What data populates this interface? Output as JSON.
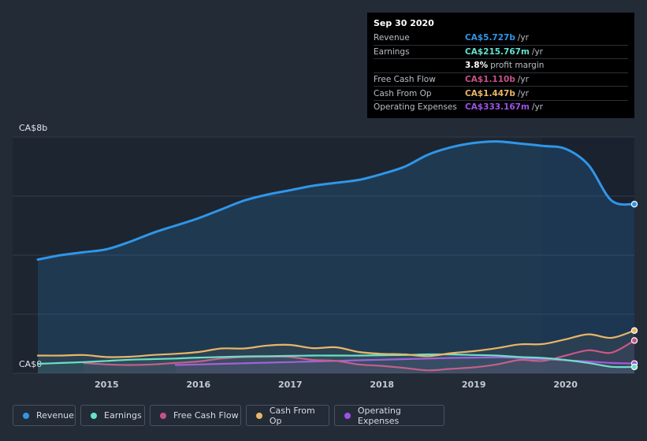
{
  "colors": {
    "background": "#232b37",
    "revenue": "#2f96e8",
    "earnings": "#62e2d0",
    "free_cash_flow": "#c8508a",
    "cash_from_op": "#e9b668",
    "operating_expenses": "#9e52e8"
  },
  "tooltip": {
    "date": "Sep 30 2020",
    "rows": [
      {
        "label": "Revenue",
        "value": "CA$5.727b",
        "unit": "/yr",
        "color": "#2f96e8"
      },
      {
        "label": "Earnings",
        "value": "CA$215.767m",
        "unit": "/yr",
        "color": "#62e2d0"
      },
      {
        "label": "",
        "value": "3.8%",
        "unit": "profit margin",
        "color": "#ffffff"
      },
      {
        "label": "Free Cash Flow",
        "value": "CA$1.110b",
        "unit": "/yr",
        "color": "#c8508a"
      },
      {
        "label": "Cash From Op",
        "value": "CA$1.447b",
        "unit": "/yr",
        "color": "#e9b668"
      },
      {
        "label": "Operating Expenses",
        "value": "CA$333.167m",
        "unit": "/yr",
        "color": "#9e52e8"
      }
    ]
  },
  "legend": [
    {
      "label": "Revenue",
      "color": "#2f96e8"
    },
    {
      "label": "Earnings",
      "color": "#62e2d0"
    },
    {
      "label": "Free Cash Flow",
      "color": "#c8508a"
    },
    {
      "label": "Cash From Op",
      "color": "#e9b668"
    },
    {
      "label": "Operating Expenses",
      "color": "#9e52e8"
    }
  ],
  "chart_data": {
    "type": "line",
    "title": "",
    "xlabel": "",
    "ylabel": "",
    "y_top_label": "CA$8b",
    "y_bottom_label": "CA$0",
    "ylim": [
      0,
      8
    ],
    "xlim": [
      2014.25,
      2020.75
    ],
    "x_ticks": [
      {
        "value": 2015,
        "label": "2015"
      },
      {
        "value": 2016,
        "label": "2016"
      },
      {
        "value": 2017,
        "label": "2017"
      },
      {
        "value": 2018,
        "label": "2018"
      },
      {
        "value": 2019,
        "label": "2019"
      },
      {
        "value": 2020,
        "label": "2020"
      }
    ],
    "highlight_from": 2019.75,
    "grid": "horizontal",
    "legend_position": "bottom",
    "series": [
      {
        "name": "Revenue",
        "key": "revenue",
        "area": true,
        "points": [
          [
            2014.25,
            3.85
          ],
          [
            2014.5,
            4.0
          ],
          [
            2014.75,
            4.1
          ],
          [
            2015.0,
            4.2
          ],
          [
            2015.25,
            4.45
          ],
          [
            2015.5,
            4.75
          ],
          [
            2015.75,
            5.0
          ],
          [
            2016.0,
            5.25
          ],
          [
            2016.25,
            5.55
          ],
          [
            2016.5,
            5.85
          ],
          [
            2016.75,
            6.05
          ],
          [
            2017.0,
            6.2
          ],
          [
            2017.25,
            6.35
          ],
          [
            2017.5,
            6.45
          ],
          [
            2017.75,
            6.55
          ],
          [
            2018.0,
            6.75
          ],
          [
            2018.25,
            7.0
          ],
          [
            2018.5,
            7.4
          ],
          [
            2018.75,
            7.65
          ],
          [
            2019.0,
            7.8
          ],
          [
            2019.25,
            7.85
          ],
          [
            2019.5,
            7.78
          ],
          [
            2019.75,
            7.7
          ],
          [
            2020.0,
            7.6
          ],
          [
            2020.25,
            7.05
          ],
          [
            2020.5,
            5.85
          ],
          [
            2020.75,
            5.727
          ]
        ]
      },
      {
        "name": "Earnings",
        "key": "earnings",
        "area": false,
        "points": [
          [
            2014.25,
            0.32
          ],
          [
            2014.5,
            0.35
          ],
          [
            2014.75,
            0.38
          ],
          [
            2015.0,
            0.42
          ],
          [
            2015.25,
            0.46
          ],
          [
            2015.5,
            0.48
          ],
          [
            2015.75,
            0.5
          ],
          [
            2016.0,
            0.53
          ],
          [
            2016.25,
            0.55
          ],
          [
            2016.5,
            0.57
          ],
          [
            2016.75,
            0.58
          ],
          [
            2017.0,
            0.59
          ],
          [
            2017.25,
            0.6
          ],
          [
            2017.5,
            0.6
          ],
          [
            2017.75,
            0.6
          ],
          [
            2018.0,
            0.61
          ],
          [
            2018.25,
            0.62
          ],
          [
            2018.5,
            0.64
          ],
          [
            2018.75,
            0.64
          ],
          [
            2019.0,
            0.62
          ],
          [
            2019.25,
            0.6
          ],
          [
            2019.5,
            0.55
          ],
          [
            2019.75,
            0.52
          ],
          [
            2020.0,
            0.45
          ],
          [
            2020.25,
            0.35
          ],
          [
            2020.5,
            0.22
          ],
          [
            2020.75,
            0.216
          ]
        ]
      },
      {
        "name": "Free Cash Flow",
        "key": "free_cash_flow",
        "area": false,
        "points": [
          [
            2014.75,
            0.35
          ],
          [
            2015.0,
            0.3
          ],
          [
            2015.25,
            0.28
          ],
          [
            2015.5,
            0.3
          ],
          [
            2015.75,
            0.35
          ],
          [
            2016.0,
            0.4
          ],
          [
            2016.25,
            0.5
          ],
          [
            2016.5,
            0.55
          ],
          [
            2016.75,
            0.56
          ],
          [
            2017.0,
            0.55
          ],
          [
            2017.25,
            0.45
          ],
          [
            2017.5,
            0.42
          ],
          [
            2017.75,
            0.3
          ],
          [
            2018.0,
            0.25
          ],
          [
            2018.25,
            0.18
          ],
          [
            2018.5,
            0.1
          ],
          [
            2018.75,
            0.15
          ],
          [
            2019.0,
            0.2
          ],
          [
            2019.25,
            0.3
          ],
          [
            2019.5,
            0.45
          ],
          [
            2019.75,
            0.42
          ],
          [
            2020.0,
            0.6
          ],
          [
            2020.25,
            0.78
          ],
          [
            2020.5,
            0.7
          ],
          [
            2020.75,
            1.11
          ]
        ]
      },
      {
        "name": "Cash From Op",
        "key": "cash_from_op",
        "area": false,
        "points": [
          [
            2014.25,
            0.6
          ],
          [
            2014.5,
            0.6
          ],
          [
            2014.75,
            0.62
          ],
          [
            2015.0,
            0.55
          ],
          [
            2015.25,
            0.56
          ],
          [
            2015.5,
            0.62
          ],
          [
            2015.75,
            0.66
          ],
          [
            2016.0,
            0.72
          ],
          [
            2016.25,
            0.84
          ],
          [
            2016.5,
            0.84
          ],
          [
            2016.75,
            0.94
          ],
          [
            2017.0,
            0.96
          ],
          [
            2017.25,
            0.85
          ],
          [
            2017.5,
            0.88
          ],
          [
            2017.75,
            0.72
          ],
          [
            2018.0,
            0.66
          ],
          [
            2018.25,
            0.64
          ],
          [
            2018.5,
            0.58
          ],
          [
            2018.75,
            0.68
          ],
          [
            2019.0,
            0.75
          ],
          [
            2019.25,
            0.85
          ],
          [
            2019.5,
            0.98
          ],
          [
            2019.75,
            0.99
          ],
          [
            2020.0,
            1.15
          ],
          [
            2020.25,
            1.32
          ],
          [
            2020.5,
            1.2
          ],
          [
            2020.75,
            1.447
          ]
        ]
      },
      {
        "name": "Operating Expenses",
        "key": "operating_expenses",
        "area": false,
        "points": [
          [
            2015.75,
            0.28
          ],
          [
            2016.0,
            0.3
          ],
          [
            2016.25,
            0.32
          ],
          [
            2016.5,
            0.34
          ],
          [
            2016.75,
            0.36
          ],
          [
            2017.0,
            0.38
          ],
          [
            2017.25,
            0.4
          ],
          [
            2017.5,
            0.42
          ],
          [
            2017.75,
            0.44
          ],
          [
            2018.0,
            0.46
          ],
          [
            2018.25,
            0.48
          ],
          [
            2018.5,
            0.5
          ],
          [
            2018.75,
            0.52
          ],
          [
            2019.0,
            0.53
          ],
          [
            2019.25,
            0.54
          ],
          [
            2019.5,
            0.52
          ],
          [
            2019.75,
            0.48
          ],
          [
            2020.0,
            0.44
          ],
          [
            2020.25,
            0.4
          ],
          [
            2020.5,
            0.35
          ],
          [
            2020.75,
            0.333
          ]
        ]
      }
    ]
  }
}
